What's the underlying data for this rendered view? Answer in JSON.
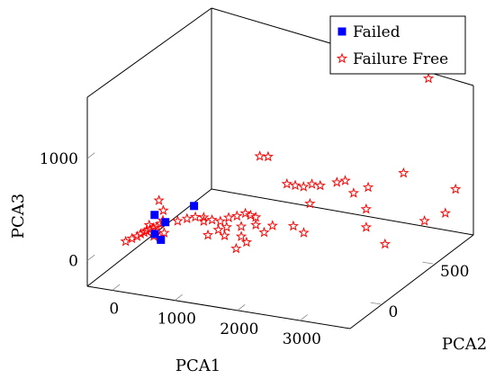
{
  "chart_data": {
    "type": "scatter",
    "title": "",
    "projection": "3d",
    "xlabel": "PCA1",
    "ylabel": "PCA2",
    "zlabel": "PCA3",
    "xlim": [
      -400,
      3800
    ],
    "ylim": [
      -300,
      900
    ],
    "zlim": [
      -250,
      1600
    ],
    "x_ticks": [
      {
        "value": 0,
        "label": "0"
      },
      {
        "value": 1000,
        "label": "1000"
      },
      {
        "value": 2000,
        "label": "2000"
      },
      {
        "value": 3000,
        "label": "3000"
      }
    ],
    "y_ticks": [
      {
        "value": 0,
        "label": "0"
      },
      {
        "value": 500,
        "label": "500"
      }
    ],
    "z_ticks": [
      {
        "value": 0,
        "label": "0"
      },
      {
        "value": 1000,
        "label": "1000"
      }
    ],
    "grid": false,
    "legend_position": "top-right",
    "series": [
      {
        "name": "Failed",
        "marker": "square",
        "color": "#0000ff",
        "points": [
          [
            50,
            80,
            5
          ],
          [
            120,
            140,
            80
          ],
          [
            330,
            290,
            140
          ],
          [
            230,
            30,
            5
          ],
          [
            80,
            60,
            210
          ]
        ]
      },
      {
        "name": "Failure Free",
        "marker": "star",
        "color": "#ff0000",
        "points": [
          [
            -200,
            -50,
            10
          ],
          [
            -150,
            -20,
            20
          ],
          [
            -100,
            0,
            30
          ],
          [
            -60,
            10,
            50
          ],
          [
            -20,
            20,
            60
          ],
          [
            0,
            30,
            70
          ],
          [
            40,
            40,
            80
          ],
          [
            80,
            50,
            90
          ],
          [
            120,
            60,
            100
          ],
          [
            150,
            70,
            120
          ],
          [
            180,
            80,
            150
          ],
          [
            60,
            20,
            140
          ],
          [
            100,
            40,
            20
          ],
          [
            160,
            60,
            5
          ],
          [
            200,
            80,
            30
          ],
          [
            100,
            90,
            330
          ],
          [
            120,
            120,
            210
          ],
          [
            300,
            150,
            100
          ],
          [
            400,
            180,
            110
          ],
          [
            500,
            200,
            120
          ],
          [
            600,
            220,
            110
          ],
          [
            700,
            240,
            80
          ],
          [
            800,
            260,
            60
          ],
          [
            900,
            280,
            90
          ],
          [
            1000,
            300,
            100
          ],
          [
            1100,
            320,
            120
          ],
          [
            1150,
            340,
            90
          ],
          [
            1200,
            360,
            60
          ],
          [
            800,
            140,
            20
          ],
          [
            900,
            180,
            50
          ],
          [
            700,
            160,
            130
          ],
          [
            1000,
            200,
            70
          ],
          [
            1200,
            220,
            80
          ],
          [
            1400,
            240,
            100
          ],
          [
            1500,
            260,
            20
          ],
          [
            1600,
            280,
            80
          ],
          [
            1900,
            300,
            90
          ],
          [
            2100,
            280,
            60
          ],
          [
            2000,
            400,
            240
          ],
          [
            1300,
            160,
            40
          ],
          [
            1100,
            120,
            60
          ],
          [
            1350,
            80,
            -10
          ],
          [
            1450,
            120,
            30
          ],
          [
            1000,
            520,
            510
          ],
          [
            1100,
            540,
            500
          ],
          [
            1500,
            480,
            320
          ],
          [
            1600,
            500,
            300
          ],
          [
            1700,
            520,
            280
          ],
          [
            1800,
            540,
            300
          ],
          [
            1900,
            560,
            280
          ],
          [
            2100,
            600,
            300
          ],
          [
            2200,
            620,
            310
          ],
          [
            2400,
            580,
            240
          ],
          [
            2600,
            600,
            300
          ],
          [
            2700,
            520,
            160
          ],
          [
            2800,
            460,
            40
          ],
          [
            3300,
            340,
            20
          ],
          [
            3500,
            600,
            60
          ],
          [
            3000,
            700,
            400
          ],
          [
            3800,
            620,
            150
          ],
          [
            3200,
            820,
            1250
          ],
          [
            3600,
            840,
            190
          ]
        ]
      }
    ]
  }
}
